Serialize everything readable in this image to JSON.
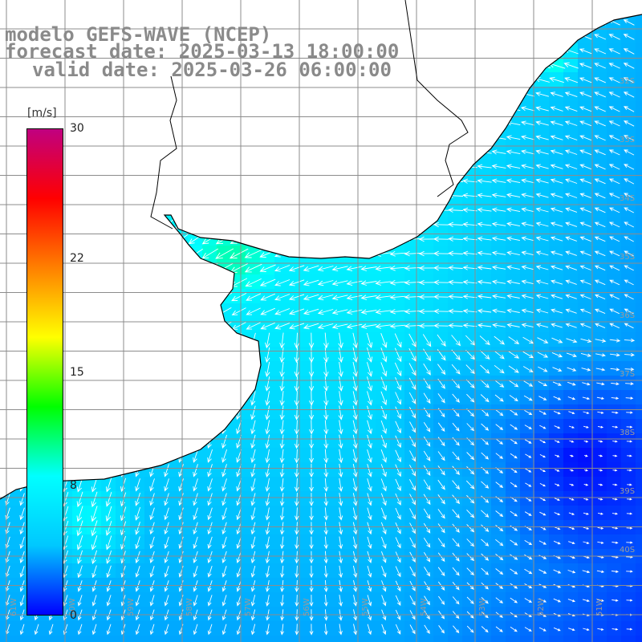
{
  "header": {
    "line1": "modelo GEFS-WAVE (NCEP)",
    "line2": "forecast date: 2025-03-13 18:00:00",
    "line3": "valid date: 2025-03-26 06:00:00"
  },
  "colorbar": {
    "unit": "[m/s]",
    "ticks": [
      {
        "label": "30",
        "value": 30
      },
      {
        "label": "22",
        "value": 22
      },
      {
        "label": "15",
        "value": 15
      },
      {
        "label": "8",
        "value": 8
      },
      {
        "label": "0",
        "value": 0
      }
    ],
    "colors": [
      "#0000ff",
      "#00c8ff",
      "#00ffff",
      "#00ff00",
      "#ffff00",
      "#ff8000",
      "#ff0000",
      "#c00080"
    ]
  },
  "map": {
    "lat_labels": [
      "32S",
      "33S",
      "34S",
      "35S",
      "36S",
      "37S",
      "38S",
      "39S",
      "40S"
    ],
    "lon_labels": [
      "61W",
      "60W",
      "59W",
      "58W",
      "57W",
      "56W",
      "55W",
      "54W",
      "53W",
      "52W",
      "51W"
    ],
    "land_color": "#ffffff",
    "grid_color": "#8c8c8c",
    "arrow_color": "#ffffff"
  }
}
